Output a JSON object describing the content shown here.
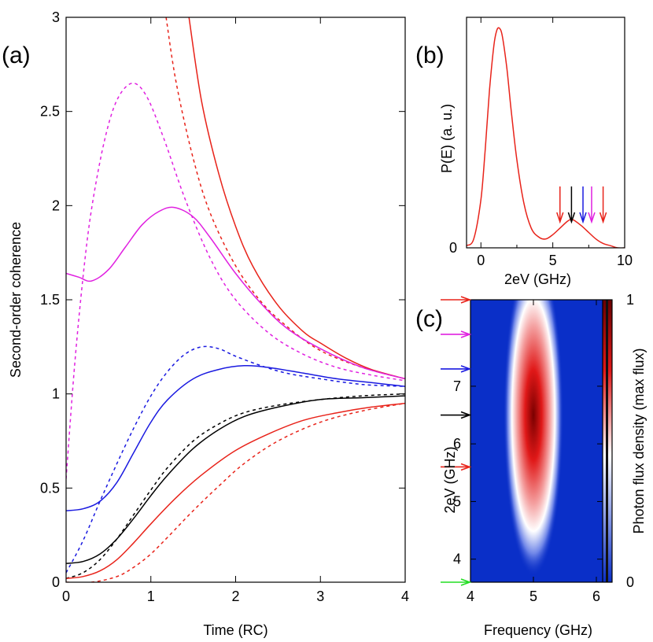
{
  "chart_data": [
    {
      "panel": "(a)",
      "type": "line",
      "xlabel": "Time (RC)",
      "ylabel": "Second-order coherence",
      "xlim": [
        0,
        4
      ],
      "ylim": [
        0,
        3
      ],
      "xticks": [
        "0",
        "1",
        "2",
        "3",
        "4"
      ],
      "yticks": [
        "0",
        "0.5",
        "1",
        "1.5",
        "2",
        "2.5",
        "3"
      ],
      "series": [
        {
          "name": "red-upper-solid",
          "color": "#e8231a",
          "dash": false,
          "x": [
            1.45,
            1.6,
            1.8,
            2,
            2.2,
            2.5,
            2.8,
            3,
            3.3,
            3.6,
            4
          ],
          "y": [
            3.0,
            2.55,
            2.17,
            1.89,
            1.68,
            1.47,
            1.33,
            1.27,
            1.19,
            1.13,
            1.08
          ]
        },
        {
          "name": "red-upper-dashed",
          "color": "#e8231a",
          "dash": true,
          "x": [
            1.18,
            1.3,
            1.5,
            1.7,
            2,
            2.3,
            2.6,
            3,
            3.5,
            4
          ],
          "y": [
            3.0,
            2.65,
            2.25,
            1.96,
            1.68,
            1.49,
            1.36,
            1.23,
            1.14,
            1.08
          ]
        },
        {
          "name": "magenta-solid",
          "color": "#e020e0",
          "dash": false,
          "x": [
            0,
            0.15,
            0.3,
            0.5,
            0.7,
            0.9,
            1.1,
            1.28,
            1.5,
            1.7,
            2,
            2.3,
            2.6,
            3,
            3.5,
            4
          ],
          "y": [
            1.64,
            1.62,
            1.6,
            1.66,
            1.78,
            1.9,
            1.97,
            1.99,
            1.94,
            1.83,
            1.64,
            1.48,
            1.35,
            1.24,
            1.14,
            1.08
          ]
        },
        {
          "name": "magenta-dashed",
          "color": "#e020e0",
          "dash": true,
          "x": [
            0,
            0.1,
            0.2,
            0.3,
            0.45,
            0.6,
            0.78,
            0.95,
            1.15,
            1.4,
            1.7,
            2,
            2.4,
            2.8,
            3.2,
            3.6,
            4
          ],
          "y": [
            0.55,
            1.15,
            1.62,
            1.98,
            2.34,
            2.56,
            2.65,
            2.58,
            2.36,
            2.04,
            1.72,
            1.5,
            1.32,
            1.21,
            1.14,
            1.1,
            1.07
          ]
        },
        {
          "name": "blue-solid",
          "color": "#1a1ae0",
          "dash": false,
          "x": [
            0,
            0.2,
            0.4,
            0.6,
            0.8,
            1,
            1.2,
            1.5,
            1.8,
            2.1,
            2.4,
            2.8,
            3.2,
            3.6,
            4
          ],
          "y": [
            0.38,
            0.39,
            0.43,
            0.53,
            0.69,
            0.85,
            0.97,
            1.08,
            1.13,
            1.15,
            1.14,
            1.11,
            1.08,
            1.06,
            1.04
          ]
        },
        {
          "name": "blue-dashed",
          "color": "#1a1ae0",
          "dash": true,
          "x": [
            0,
            0.2,
            0.4,
            0.6,
            0.8,
            1,
            1.2,
            1.4,
            1.6,
            1.8,
            2,
            2.3,
            2.6,
            3,
            3.5,
            4
          ],
          "y": [
            0.05,
            0.22,
            0.43,
            0.63,
            0.82,
            0.99,
            1.12,
            1.21,
            1.25,
            1.24,
            1.2,
            1.15,
            1.11,
            1.08,
            1.05,
            1.04
          ]
        },
        {
          "name": "black-solid",
          "color": "#000000",
          "dash": false,
          "x": [
            0,
            0.2,
            0.4,
            0.6,
            0.8,
            1,
            1.2,
            1.5,
            1.8,
            2.1,
            2.5,
            3,
            3.5,
            4
          ],
          "y": [
            0.1,
            0.11,
            0.15,
            0.23,
            0.34,
            0.46,
            0.57,
            0.71,
            0.81,
            0.88,
            0.93,
            0.97,
            0.98,
            0.99
          ]
        },
        {
          "name": "black-dashed",
          "color": "#000000",
          "dash": true,
          "x": [
            0,
            0.2,
            0.4,
            0.6,
            0.8,
            1,
            1.2,
            1.5,
            1.8,
            2.1,
            2.5,
            3,
            3.5,
            4
          ],
          "y": [
            0.02,
            0.05,
            0.12,
            0.23,
            0.36,
            0.49,
            0.61,
            0.75,
            0.84,
            0.9,
            0.94,
            0.97,
            0.99,
            1.0
          ]
        },
        {
          "name": "red-lower-solid",
          "color": "#e8231a",
          "dash": false,
          "x": [
            0,
            0.2,
            0.4,
            0.6,
            0.8,
            1,
            1.3,
            1.6,
            2,
            2.4,
            2.8,
            3.2,
            3.6,
            4
          ],
          "y": [
            0.02,
            0.03,
            0.06,
            0.12,
            0.21,
            0.31,
            0.45,
            0.57,
            0.7,
            0.79,
            0.86,
            0.9,
            0.93,
            0.95
          ]
        },
        {
          "name": "red-lower-dashed",
          "color": "#e8231a",
          "dash": true,
          "x": [
            0,
            0.3,
            0.6,
            0.8,
            1,
            1.2,
            1.5,
            1.8,
            2.1,
            2.5,
            3,
            3.5,
            4
          ],
          "y": [
            0.0,
            0.0,
            0.03,
            0.08,
            0.15,
            0.24,
            0.38,
            0.51,
            0.63,
            0.75,
            0.85,
            0.91,
            0.95
          ]
        }
      ]
    },
    {
      "panel": "(b)",
      "type": "line",
      "xlabel": "2eV (GHz)",
      "ylabel": "P(E) (a. u.)",
      "xlim": [
        -1,
        10
      ],
      "ylim": [
        0,
        1.05
      ],
      "xticks": [
        "0",
        "5",
        "10"
      ],
      "yticks": [
        "0"
      ],
      "series": [
        {
          "name": "P(E)",
          "color": "#e8231a",
          "x": [
            -1,
            -0.5,
            0,
            0.3,
            0.6,
            0.9,
            1.1,
            1.3,
            1.5,
            1.8,
            2.1,
            2.5,
            3,
            3.5,
            4,
            4.5,
            5,
            5.5,
            6,
            6.3,
            6.6,
            7,
            7.5,
            8,
            8.5,
            9,
            9.5,
            10
          ],
          "y": [
            0.01,
            0.04,
            0.22,
            0.45,
            0.72,
            0.92,
            0.99,
            1.0,
            0.96,
            0.82,
            0.63,
            0.4,
            0.2,
            0.09,
            0.05,
            0.04,
            0.06,
            0.09,
            0.12,
            0.13,
            0.12,
            0.1,
            0.07,
            0.04,
            0.02,
            0.01,
            0.0,
            0.0
          ]
        }
      ],
      "arrows": [
        {
          "x": 5.5,
          "color": "#e8231a"
        },
        {
          "x": 6.3,
          "color": "#000000"
        },
        {
          "x": 7.1,
          "color": "#1a1ae0"
        },
        {
          "x": 7.7,
          "color": "#e020e0"
        },
        {
          "x": 8.5,
          "color": "#e8231a"
        }
      ]
    },
    {
      "panel": "(c)",
      "type": "heatmap",
      "xlabel": "Frequency (GHz)",
      "ylabel": "2eV (GHz)",
      "colorbar_label": "Photon flux density (max flux)",
      "colorbar_ticks": [
        "0",
        "1"
      ],
      "xlim": [
        4,
        6.1
      ],
      "ylim": [
        3.6,
        8.5
      ],
      "xticks": [
        "4",
        "5",
        "6"
      ],
      "yticks": [
        "4",
        "5",
        "6",
        "7"
      ],
      "peak": {
        "x": 5.0,
        "y": 6.5
      },
      "arrows": [
        {
          "y": 8.5,
          "color": "#e8231a"
        },
        {
          "y": 7.9,
          "color": "#e020e0"
        },
        {
          "y": 7.3,
          "color": "#1a1ae0"
        },
        {
          "y": 6.5,
          "color": "#000000"
        },
        {
          "y": 5.6,
          "color": "#e8231a"
        },
        {
          "y": 3.6,
          "color": "#22dd22"
        }
      ]
    }
  ]
}
